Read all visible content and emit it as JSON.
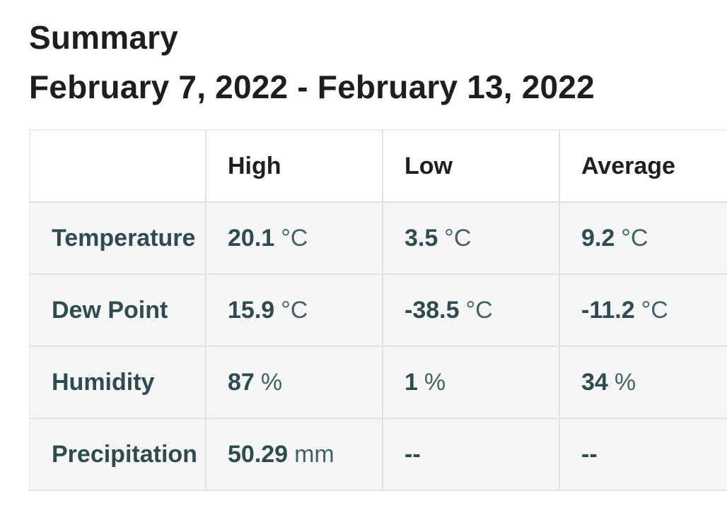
{
  "page": {
    "title": "Summary",
    "date_range": "February 7, 2022 - February 13, 2022"
  },
  "table": {
    "headers": [
      "",
      "High",
      "Low",
      "Average"
    ],
    "rows": [
      {
        "label": "Temperature",
        "cells": [
          {
            "value": "20.1",
            "unit": "°C"
          },
          {
            "value": "3.5",
            "unit": "°C"
          },
          {
            "value": "9.2",
            "unit": "°C"
          }
        ]
      },
      {
        "label": "Dew Point",
        "cells": [
          {
            "value": "15.9",
            "unit": "°C"
          },
          {
            "value": "-38.5",
            "unit": "°C"
          },
          {
            "value": "-11.2",
            "unit": "°C"
          }
        ]
      },
      {
        "label": "Humidity",
        "cells": [
          {
            "value": "87",
            "unit": "%"
          },
          {
            "value": "1",
            "unit": "%"
          },
          {
            "value": "34",
            "unit": "%"
          }
        ]
      },
      {
        "label": "Precipitation",
        "cells": [
          {
            "value": "50.29",
            "unit": "mm"
          },
          {
            "value": "--",
            "unit": ""
          },
          {
            "value": "--",
            "unit": ""
          }
        ]
      }
    ]
  },
  "colors": {
    "heading_text": "#1e1e1e",
    "column_header_text": "#1f1f1f",
    "metric_text": "#2e4c4f",
    "unit_text": "#446266",
    "row_background": "#f6f6f6",
    "header_background": "#ffffff",
    "border": "#e2e2e2",
    "page_background": "#ffffff"
  }
}
